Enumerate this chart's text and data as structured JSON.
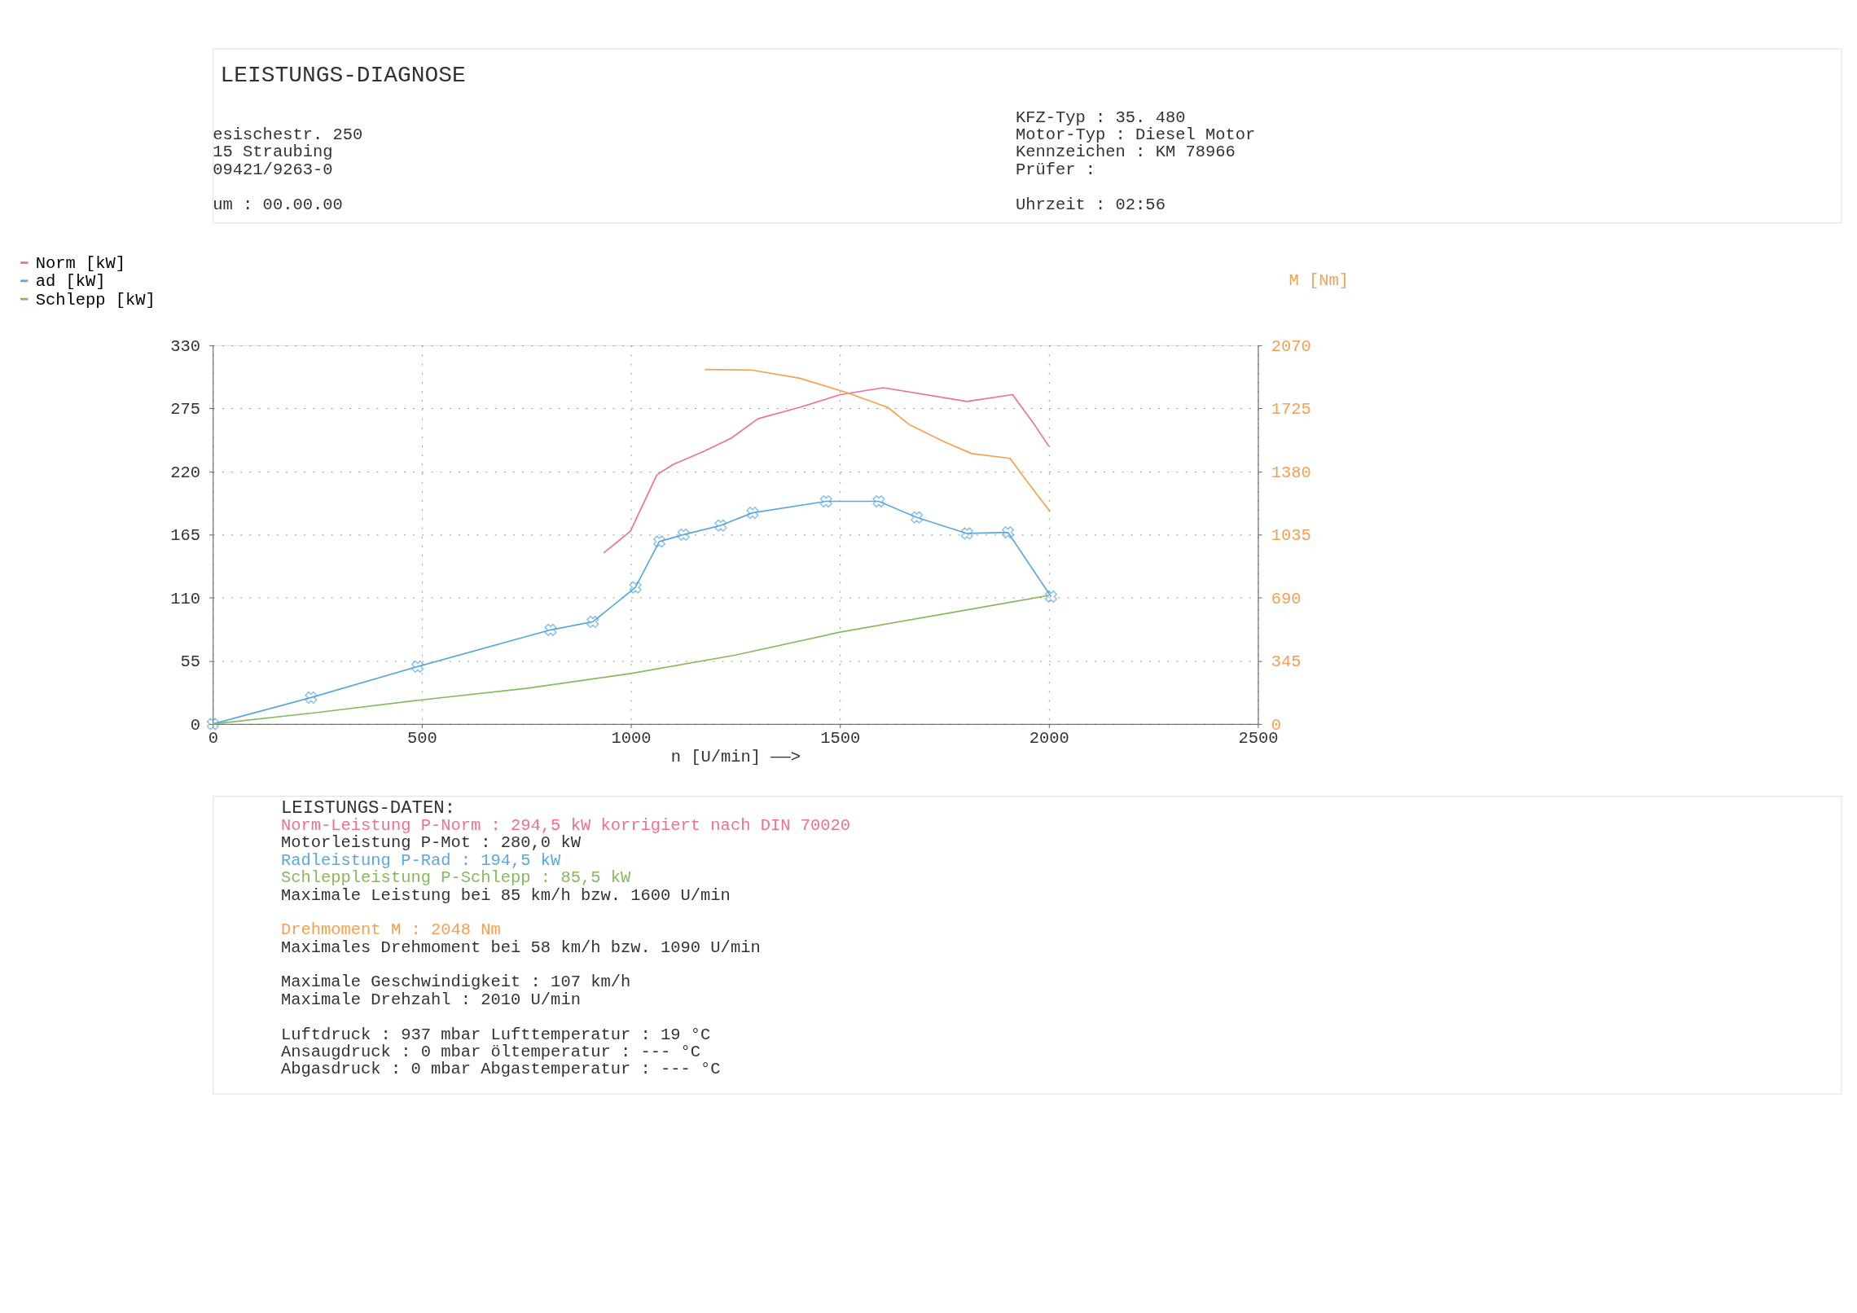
{
  "chart_data": {
    "type": "line",
    "title": "LEISTUNGS-DIAGNOSE",
    "xlabel": "n [U/min] ——>",
    "y2label": "M [Nm]",
    "xlim": [
      0,
      2500
    ],
    "xticks": [
      0,
      500,
      1000,
      1500,
      2000,
      2500
    ],
    "ylim": [
      0,
      330
    ],
    "yticks": [
      0,
      55,
      110,
      165,
      220,
      275,
      330
    ],
    "y2lim": [
      0,
      2070
    ],
    "y2ticks": [
      0,
      345,
      690,
      1035,
      1380,
      1725,
      2070
    ],
    "grid": true,
    "legend": "top left",
    "series": [
      {
        "name": "Norm [kW]",
        "color": "#f07090",
        "x": [
          935,
          999,
          1062,
          1100,
          1177,
          1240,
          1304,
          1404,
          1501,
          1604,
          1804,
          1913,
          1965,
          2000
        ],
        "values": [
          149,
          168,
          217,
          226,
          238,
          249,
          266,
          276,
          287,
          293,
          281,
          287,
          261,
          242
        ]
      },
      {
        "name": "ad [kW]",
        "color": "#5aa8e0",
        "marker": "cross",
        "x": [
          0,
          235,
          490,
          808,
          909,
          1011,
          1068,
          1126,
          1215,
          1291,
          1467,
          1593,
          1684,
          1804,
          1902,
          2005
        ],
        "values": [
          0,
          23,
          50,
          82,
          89,
          119,
          159,
          165,
          173,
          184,
          194,
          194,
          180,
          166,
          167,
          111
        ]
      },
      {
        "name": "Schlepp [kW]",
        "color": "#88b860",
        "x": [
          0,
          250,
          500,
          750,
          1000,
          1250,
          1500,
          1750,
          2000
        ],
        "values": [
          0,
          10,
          21,
          31,
          44,
          60,
          80,
          96,
          112
        ]
      },
      {
        "color": "#f5a050",
        "axis": "y2",
        "x": [
          1177,
          1289,
          1404,
          1518,
          1615,
          1665,
          1747,
          1815,
          1907,
          1941,
          2003
        ],
        "values": [
          1938,
          1935,
          1890,
          1810,
          1730,
          1638,
          1545,
          1478,
          1452,
          1346,
          1160
        ]
      }
    ],
    "annotations": [
      "esischestr. 250",
      "15 Straubing",
      "09421/9263-0",
      "um : 00.00.00",
      "KFZ-Typ       :  35. 480",
      "Motor-Typ     : Diesel Motor",
      "Kennzeichen   :        KM 78966",
      "Prüfer        :",
      "Uhrzeit       : 02:56",
      "LEISTUNGS-DATEN:",
      "Norm-Leistung          P-Norm      : 294,5 kW korrigiert nach DIN 70020",
      "Motorleistung          P-Mot       : 280,0 kW",
      "Radleistung            P-Rad       : 194,5 kW",
      "Schleppleistung        P-Schlepp   :  85,5 kW",
      "Maximale Leistung bei  85 km/h bzw.  1600 U/min",
      "Drehmoment             M           :  2048 Nm",
      "Maximales Drehmoment bei  58 km/h bzw.  1090 U/min",
      "Maximale Geschwindigkeit           :   107 km/h",
      "Maximale Drehzahl                  :  2010 U/min",
      "Luftdruck        :  937 mbar    Lufttemperatur    :  19 °C",
      "Ansaugdruck      :    0 mbar    öltemperatur      : --- °C",
      "Abgasdruck       :    0 mbar    Abgastemperatur   : --- °C"
    ]
  }
}
